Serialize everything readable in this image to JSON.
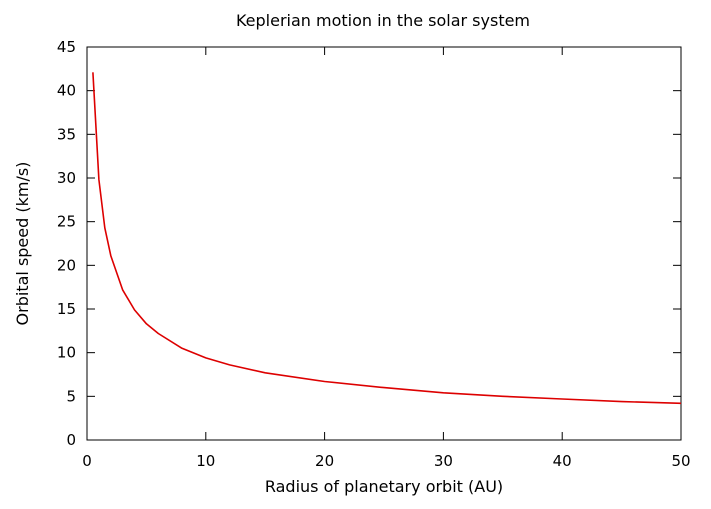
{
  "chart_data": {
    "type": "line",
    "title": "Keplerian motion in the solar system",
    "xlabel": "Radius of planetary orbit (AU)",
    "ylabel": "Orbital speed (km/s)",
    "xlim": [
      0,
      50
    ],
    "ylim": [
      0,
      45
    ],
    "xticks": [
      0,
      10,
      20,
      30,
      40,
      50
    ],
    "yticks": [
      0,
      5,
      10,
      15,
      20,
      25,
      30,
      35,
      40,
      45
    ],
    "grid": false,
    "legend": "none",
    "series": [
      {
        "color": "#dd0000",
        "x": [
          0.5,
          1,
          1.5,
          2,
          3,
          4,
          5,
          6,
          8,
          10,
          12,
          15,
          20,
          25,
          30,
          35,
          40,
          45,
          50
        ],
        "y": [
          42.1,
          29.8,
          24.3,
          21.1,
          17.2,
          14.9,
          13.3,
          12.2,
          10.5,
          9.4,
          8.6,
          7.7,
          6.7,
          6.0,
          5.4,
          5.0,
          4.7,
          4.4,
          4.2
        ]
      }
    ]
  }
}
